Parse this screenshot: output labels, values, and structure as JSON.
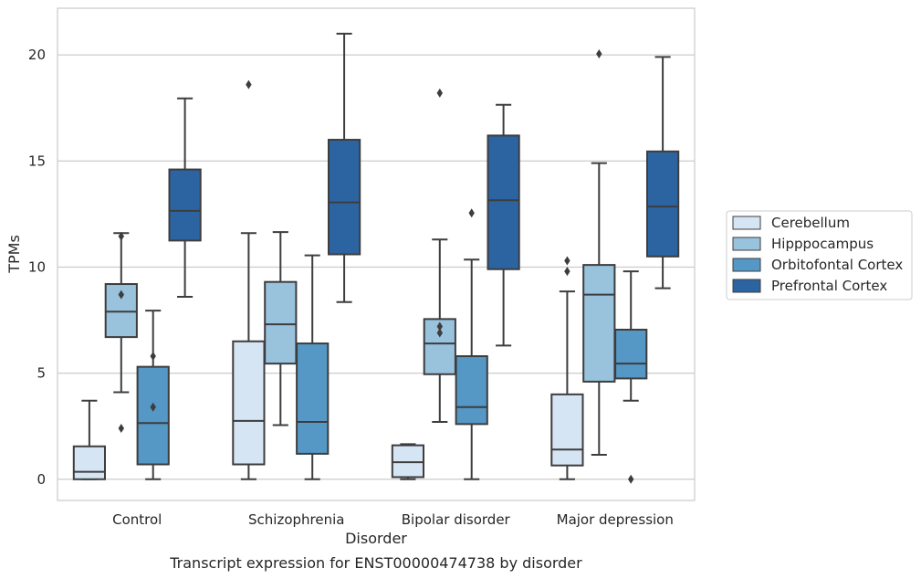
{
  "chart_data": {
    "type": "box",
    "title": "",
    "caption": "Transcript expression for ENST00000474738 by disorder",
    "xlabel": "Disorder",
    "ylabel": "TPMs",
    "ylim": [
      -1,
      22.2
    ],
    "yticks": [
      0,
      5,
      10,
      15,
      20
    ],
    "grid": "horizontal",
    "legend_position": "right",
    "categories": [
      "Control",
      "Schizophrenia",
      "Bipolar disorder",
      "Major depression"
    ],
    "series": [
      {
        "name": "Cerebellum",
        "color": "#d6e5f4",
        "boxes": [
          {
            "whislo": 0,
            "q1": 0,
            "med": 0.35,
            "q3": 1.55,
            "whishi": 3.7,
            "fliers": []
          },
          {
            "whislo": 0,
            "q1": 0.7,
            "med": 2.75,
            "q3": 6.5,
            "whishi": 11.6,
            "fliers": [
              18.6
            ]
          },
          {
            "whislo": 0,
            "q1": 0.1,
            "med": 0.8,
            "q3": 1.6,
            "whishi": 1.65,
            "fliers": []
          },
          {
            "whislo": 0,
            "q1": 0.65,
            "med": 1.4,
            "q3": 4.0,
            "whishi": 8.85,
            "fliers": [
              9.8,
              10.3
            ]
          }
        ]
      },
      {
        "name": "Hipppocampus",
        "color": "#99c2dd",
        "boxes": [
          {
            "whislo": 4.1,
            "q1": 6.7,
            "med": 7.9,
            "q3": 9.2,
            "whishi": 11.6,
            "fliers": [
              2.4,
              8.7,
              11.45
            ]
          },
          {
            "whislo": 2.55,
            "q1": 5.45,
            "med": 7.3,
            "q3": 9.3,
            "whishi": 11.65,
            "fliers": []
          },
          {
            "whislo": 2.7,
            "q1": 4.95,
            "med": 6.4,
            "q3": 7.55,
            "whishi": 11.3,
            "fliers": [
              6.9,
              7.2,
              18.2
            ]
          },
          {
            "whislo": 1.15,
            "q1": 4.6,
            "med": 8.7,
            "q3": 10.1,
            "whishi": 14.9,
            "fliers": [
              20.05
            ]
          }
        ]
      },
      {
        "name": "Orbitofontal Cortex",
        "color": "#5597c5",
        "boxes": [
          {
            "whislo": 0,
            "q1": 0.7,
            "med": 2.65,
            "q3": 5.3,
            "whishi": 7.95,
            "fliers": [
              3.4,
              5.8
            ]
          },
          {
            "whislo": 0,
            "q1": 1.2,
            "med": 2.7,
            "q3": 6.4,
            "whishi": 10.55,
            "fliers": []
          },
          {
            "whislo": 0,
            "q1": 2.6,
            "med": 3.4,
            "q3": 5.8,
            "whishi": 10.35,
            "fliers": [
              12.55
            ]
          },
          {
            "whislo": 3.7,
            "q1": 4.75,
            "med": 5.45,
            "q3": 7.05,
            "whishi": 9.8,
            "fliers": [
              0
            ]
          }
        ]
      },
      {
        "name": "Prefrontal Cortex",
        "color": "#2c64a2",
        "boxes": [
          {
            "whislo": 8.6,
            "q1": 11.25,
            "med": 12.65,
            "q3": 14.6,
            "whishi": 17.95,
            "fliers": []
          },
          {
            "whislo": 8.35,
            "q1": 10.6,
            "med": 13.05,
            "q3": 16.0,
            "whishi": 21.0,
            "fliers": []
          },
          {
            "whislo": 6.3,
            "q1": 9.9,
            "med": 13.15,
            "q3": 16.2,
            "whishi": 17.65,
            "fliers": []
          },
          {
            "whislo": 9.0,
            "q1": 10.5,
            "med": 12.85,
            "q3": 15.45,
            "whishi": 19.9,
            "fliers": []
          }
        ]
      }
    ]
  }
}
